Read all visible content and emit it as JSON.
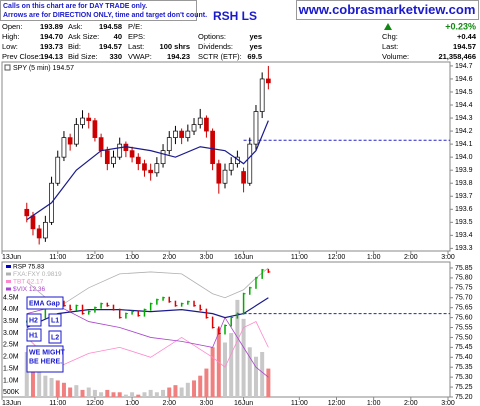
{
  "header": {
    "note": [
      "Calls on this chart are for DAY TRADE only.",
      "Arrows are for DIRECTION ONLY, time and target don't count."
    ],
    "signal": "RSH LS",
    "site": "www.cobrasmarketview.com"
  },
  "quote": {
    "rows": [
      [
        {
          "label": "Open:",
          "value": "193.89"
        },
        {
          "label": "Ask:",
          "value": "194.58"
        },
        {
          "label": "P/E:"
        },
        null,
        {
          "value": "+0.23%"
        }
      ],
      [
        {
          "label": "High:",
          "value": "194.70"
        },
        {
          "label": "Ask Size:",
          "value": "40"
        },
        {
          "label": "EPS:"
        },
        {
          "label": "Options:",
          "value": "yes"
        },
        {
          "label": "Chg:",
          "value": "+0.44"
        }
      ],
      [
        {
          "label": "Low:",
          "value": "193.73"
        },
        {
          "label": "Bid:",
          "value": "194.57"
        },
        {
          "label": "Last:",
          "value": "100 shrs"
        },
        {
          "label": "Dividends:",
          "value": "yes"
        },
        {
          "label": "Last:",
          "value": "194.57"
        }
      ],
      [
        {
          "label": "Prev Close:",
          "value": "194.13"
        },
        {
          "label": "Bid Size:",
          "value": "330"
        },
        {
          "label": "VWAP:",
          "value": "194.23"
        },
        {
          "label": "SCTR (ETF):",
          "value": "69.5"
        },
        {
          "label": "Volume:",
          "value": "21,358,466"
        }
      ]
    ]
  },
  "chart_data": [
    {
      "type": "candlestick",
      "title": "SPY (5 min) 194.57",
      "x": [
        4,
        5,
        6,
        7,
        8,
        9,
        10,
        11,
        12,
        13,
        14,
        15,
        16,
        17,
        18,
        19,
        20,
        21,
        22,
        23,
        24,
        25,
        26,
        27,
        28,
        29,
        30,
        31,
        32,
        33,
        34,
        35,
        36,
        37,
        38,
        39,
        40,
        41,
        42,
        43
      ],
      "open": [
        193.6,
        193.55,
        193.45,
        193.38,
        193.5,
        193.8,
        194.0,
        194.15,
        194.1,
        194.25,
        194.3,
        194.28,
        194.15,
        194.05,
        193.95,
        194.0,
        194.1,
        194.05,
        194.0,
        193.95,
        193.9,
        193.88,
        193.95,
        194.05,
        194.15,
        194.2,
        194.15,
        194.2,
        194.25,
        194.3,
        194.2,
        193.95,
        193.8,
        193.9,
        193.95,
        193.89,
        193.8,
        194.1,
        194.35,
        194.6
      ],
      "high": [
        193.65,
        193.58,
        193.48,
        193.55,
        193.85,
        194.05,
        194.2,
        194.18,
        194.3,
        194.36,
        194.34,
        194.3,
        194.18,
        194.08,
        194.05,
        194.15,
        194.12,
        194.08,
        194.03,
        193.98,
        193.95,
        194.0,
        194.1,
        194.2,
        194.24,
        194.22,
        194.25,
        194.3,
        194.37,
        194.32,
        194.22,
        193.98,
        193.95,
        194.0,
        194.05,
        193.92,
        194.15,
        194.4,
        194.65,
        194.7
      ],
      "low": [
        193.5,
        193.4,
        193.33,
        193.35,
        193.48,
        193.78,
        193.97,
        194.05,
        194.08,
        194.22,
        194.22,
        194.12,
        194.0,
        193.9,
        193.92,
        193.98,
        194.0,
        193.96,
        193.9,
        193.85,
        193.82,
        193.85,
        193.92,
        194.02,
        194.1,
        194.1,
        194.12,
        194.17,
        194.22,
        194.15,
        193.9,
        193.72,
        193.76,
        193.86,
        193.92,
        193.73,
        193.78,
        194.05,
        194.3,
        194.52
      ],
      "close": [
        193.55,
        193.45,
        193.38,
        193.5,
        193.8,
        194.0,
        194.15,
        194.1,
        194.25,
        194.3,
        194.28,
        194.15,
        194.05,
        193.95,
        194.0,
        194.1,
        194.05,
        194.0,
        193.95,
        193.9,
        193.88,
        193.95,
        194.05,
        194.15,
        194.2,
        194.15,
        194.2,
        194.25,
        194.3,
        194.2,
        193.95,
        193.8,
        193.9,
        193.95,
        194.0,
        193.8,
        194.1,
        194.35,
        194.6,
        194.57
      ],
      "up_color": "#ffffff",
      "down_color": "#cc0000",
      "ma": {
        "color": "#1a1a8c",
        "x": [
          4,
          8,
          12,
          16,
          20,
          24,
          28,
          32,
          36,
          39,
          41,
          43
        ],
        "values": [
          193.52,
          193.65,
          193.9,
          194.05,
          194.08,
          194.05,
          194.0,
          194.08,
          194.05,
          193.95,
          194.05,
          194.28
        ]
      },
      "reference_line": {
        "value": 194.13,
        "from": 39,
        "color": "#2222cc"
      },
      "xlim": [
        0,
        72
      ],
      "ylim": [
        193.28,
        194.73
      ],
      "xticks": [
        {
          "value": 0,
          "label": "13Jun"
        },
        {
          "value": 9,
          "label": "11:00"
        },
        {
          "value": 15,
          "label": "12:00"
        },
        {
          "value": 21,
          "label": "1:00"
        },
        {
          "value": 27,
          "label": "2:00"
        },
        {
          "value": 33,
          "label": "3:00"
        },
        {
          "value": 39,
          "label": "16Jun"
        },
        {
          "value": 48,
          "label": "11:00"
        },
        {
          "value": 54,
          "label": "12:00"
        },
        {
          "value": 60,
          "label": "1:00"
        },
        {
          "value": 66,
          "label": "2:00"
        },
        {
          "value": 72,
          "label": "3:00"
        }
      ],
      "yticks": [
        194.7,
        194.6,
        194.5,
        194.4,
        194.3,
        194.2,
        194.1,
        {
          "value": 194,
          "label": "194.0"
        },
        193.9,
        193.8,
        193.7,
        193.6,
        193.5,
        193.4,
        193.3
      ]
    },
    {
      "type": "ohlc-volume",
      "x": [
        4,
        5,
        6,
        7,
        8,
        9,
        10,
        11,
        12,
        13,
        14,
        15,
        16,
        17,
        18,
        19,
        20,
        21,
        22,
        23,
        24,
        25,
        26,
        27,
        28,
        29,
        30,
        31,
        32,
        33,
        34,
        35,
        36,
        37,
        38,
        39,
        40,
        41,
        42,
        43
      ],
      "price": {
        "name": "RSP 75.83",
        "up_color": "#00aa00",
        "down_color": "#dd0000",
        "legend_color": "#0000cc",
        "values": [
          75.58,
          75.56,
          75.6,
          75.66,
          75.7,
          75.68,
          75.66,
          75.64,
          75.66,
          75.62,
          75.63,
          75.65,
          75.67,
          75.66,
          75.64,
          75.6,
          75.62,
          75.63,
          75.61,
          75.64,
          75.67,
          75.69,
          75.7,
          75.68,
          75.66,
          75.67,
          75.68,
          75.66,
          75.64,
          75.6,
          75.55,
          75.52,
          75.56,
          75.6,
          75.62,
          75.72,
          75.75,
          75.8,
          75.84,
          75.83
        ]
      },
      "series": [
        {
          "name": "FXA:FXY 0.9819",
          "color": "#b0b0b0",
          "x": [
            4,
            9,
            14,
            19,
            24,
            29,
            34,
            36,
            39,
            41,
            43
          ],
          "values": [
            75.78,
            75.65,
            75.75,
            75.82,
            75.83,
            75.82,
            75.72,
            75.7,
            75.74,
            75.8,
            75.85
          ]
        },
        {
          "name": "TBT 62.17",
          "color": "#ff88cc",
          "x": [
            4,
            9,
            14,
            19,
            24,
            29,
            34,
            36,
            39,
            41,
            43
          ],
          "values": [
            75.5,
            75.35,
            75.42,
            75.45,
            75.4,
            75.5,
            75.4,
            75.35,
            75.55,
            75.58,
            75.45
          ]
        },
        {
          "name": "$VIX 12.36",
          "color": "#aa44cc",
          "x": [
            4,
            9,
            14,
            19,
            24,
            29,
            34,
            36,
            39,
            41,
            43
          ],
          "values": [
            75.62,
            75.66,
            75.58,
            75.55,
            75.5,
            75.48,
            75.45,
            75.6,
            75.45,
            75.35,
            75.3
          ]
        }
      ],
      "ma": {
        "color": "#1a1a8c",
        "x": [
          4,
          9,
          14,
          19,
          24,
          29,
          34,
          36,
          39,
          41,
          43
        ],
        "values": [
          75.55,
          75.62,
          75.64,
          75.64,
          75.63,
          75.64,
          75.62,
          75.6,
          75.62,
          75.66,
          75.7
        ]
      },
      "volume": {
        "up_color": "#c8c8c8",
        "down_color": "#f08080",
        "values": [
          2200000,
          1600000,
          1400000,
          1200000,
          1100000,
          1000000,
          900000,
          700000,
          800000,
          600000,
          700000,
          600000,
          500000,
          600000,
          500000,
          500000,
          400000,
          500000,
          400000,
          500000,
          600000,
          500000,
          600000,
          700000,
          800000,
          700000,
          900000,
          1000000,
          1200000,
          1500000,
          2400000,
          3200000,
          2600000,
          3000000,
          4400000,
          3600000,
          2400000,
          2000000,
          2200000,
          1500000
        ]
      },
      "reference_line": {
        "value": 75.62,
        "from": 39,
        "color": "#2222cc"
      },
      "xlim": [
        0,
        72
      ],
      "ylim": [
        75.2,
        75.88
      ],
      "y2lim": [
        300000,
        6000000
      ],
      "xticks": [
        {
          "value": 0,
          "label": "13Jun"
        },
        {
          "value": 9,
          "label": "11:00"
        },
        {
          "value": 15,
          "label": "12:00"
        },
        {
          "value": 21,
          "label": "1:00"
        },
        {
          "value": 27,
          "label": "2:00"
        },
        {
          "value": 33,
          "label": "3:00"
        },
        {
          "value": 39,
          "label": "16Jun"
        },
        {
          "value": 48,
          "label": "11:00"
        },
        {
          "value": 54,
          "label": "12:00"
        },
        {
          "value": 60,
          "label": "1:00"
        },
        {
          "value": 66,
          "label": "2:00"
        },
        {
          "value": 72,
          "label": "3:00"
        }
      ],
      "yticks": [
        75.85,
        {
          "value": 75.8,
          "label": "75.80"
        },
        75.75,
        {
          "value": 75.7,
          "label": "75.70"
        },
        75.65,
        {
          "value": 75.6,
          "label": "75.60"
        },
        75.55,
        {
          "value": 75.5,
          "label": "75.50"
        },
        75.45,
        {
          "value": 75.4,
          "label": "75.40"
        },
        75.35,
        {
          "value": 75.3,
          "label": "75.30"
        },
        75.25,
        {
          "value": 75.2,
          "label": "75.20"
        }
      ],
      "y2ticks": [
        {
          "value": 4500000,
          "label": "4.5M"
        },
        {
          "value": 4000000,
          "label": "4.0M"
        },
        {
          "value": 3500000,
          "label": "3.5M"
        },
        {
          "value": 3000000,
          "label": "3.0M"
        },
        {
          "value": 2500000,
          "label": "2.5M"
        },
        {
          "value": 2000000,
          "label": "2.0M"
        },
        {
          "value": 1500000,
          "label": "1.5M"
        },
        {
          "value": 1000000,
          "label": "1.0M"
        },
        {
          "value": 500000,
          "label": "500K"
        }
      ],
      "annotations": [
        {
          "lines": [
            "EMA Gap"
          ]
        },
        {
          "lines": [
            "H2"
          ]
        },
        {
          "lines": [
            "L1"
          ]
        },
        {
          "lines": [
            "H1"
          ]
        },
        {
          "lines": [
            "L2"
          ]
        },
        {
          "lines": [
            "WE MIGHT",
            "BE HERE."
          ]
        }
      ]
    }
  ]
}
